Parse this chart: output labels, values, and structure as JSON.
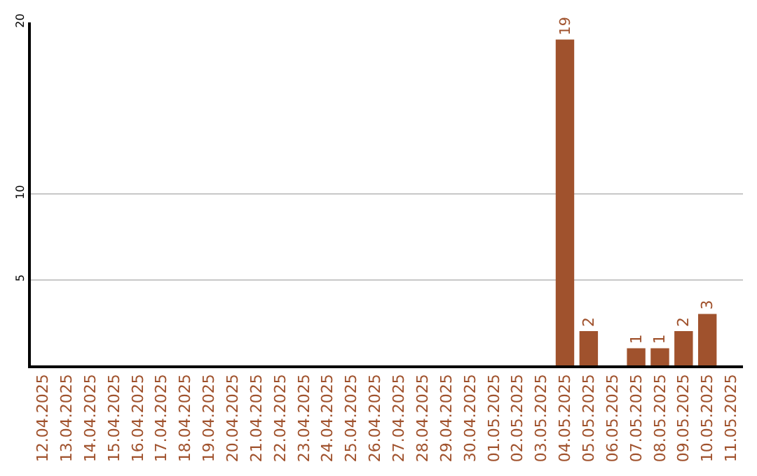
{
  "chart_data": {
    "type": "bar",
    "categories": [
      "12.04.2025",
      "13.04.2025",
      "14.04.2025",
      "15.04.2025",
      "16.04.2025",
      "17.04.2025",
      "18.04.2025",
      "19.04.2025",
      "20.04.2025",
      "21.04.2025",
      "22.04.2025",
      "23.04.2025",
      "24.04.2025",
      "25.04.2025",
      "26.04.2025",
      "27.04.2025",
      "28.04.2025",
      "29.04.2025",
      "30.04.2025",
      "01.05.2025",
      "02.05.2025",
      "03.05.2025",
      "04.05.2025",
      "05.05.2025",
      "06.05.2025",
      "07.05.2025",
      "08.05.2025",
      "09.05.2025",
      "10.05.2025",
      "11.05.2025"
    ],
    "values": [
      0,
      0,
      0,
      0,
      0,
      0,
      0,
      0,
      0,
      0,
      0,
      0,
      0,
      0,
      0,
      0,
      0,
      0,
      0,
      0,
      0,
      0,
      19,
      2,
      0,
      1,
      1,
      2,
      3,
      0
    ],
    "value_labels": [
      null,
      null,
      null,
      null,
      null,
      null,
      null,
      null,
      null,
      null,
      null,
      null,
      null,
      null,
      null,
      null,
      null,
      null,
      null,
      null,
      null,
      null,
      "19",
      "2",
      null,
      "1",
      "1",
      "2",
      "3",
      null
    ],
    "color": "#a0522d",
    "ylim": [
      0,
      20
    ],
    "yticks": [
      5,
      10,
      20
    ],
    "grid": "y",
    "legend": false
  }
}
